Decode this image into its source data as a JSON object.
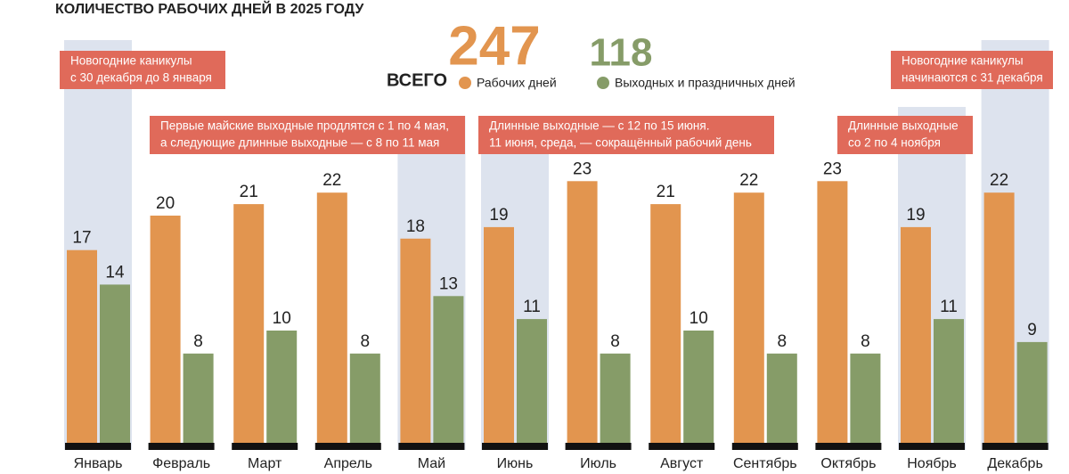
{
  "chart_data": {
    "type": "bar",
    "title": "КОЛИЧЕСТВО РАБОЧИХ ДНЕЙ В 2025 ГОДУ",
    "total_label": "ВСЕГО",
    "categories": [
      "Январь",
      "Февраль",
      "Март",
      "Апрель",
      "Май",
      "Июнь",
      "Июль",
      "Август",
      "Сентябрь",
      "Октябрь",
      "Ноябрь",
      "Декабрь"
    ],
    "series": [
      {
        "name": "Рабочих дней",
        "color": "#e2954f",
        "total": 247,
        "values": [
          17,
          20,
          21,
          22,
          18,
          19,
          23,
          21,
          22,
          23,
          19,
          22
        ]
      },
      {
        "name": "Выходных и праздничных дней",
        "color": "#869c68",
        "total": 118,
        "values": [
          14,
          8,
          10,
          8,
          13,
          11,
          8,
          10,
          8,
          8,
          11,
          9
        ]
      }
    ],
    "highlighted_categories": [
      "Январь",
      "Май",
      "Июнь",
      "Ноябрь",
      "Декабрь"
    ],
    "highlight_color": "#dde3ee",
    "annotation_color": "#e06a5a",
    "annotations": [
      {
        "lines": [
          "Новогодние каникулы",
          "с 30 декабря до 8 января"
        ]
      },
      {
        "lines": [
          "Первые майские выходные продлятся с 1 по 4 мая,",
          "а следующие длинные выходные — с 8 по 11 мая"
        ]
      },
      {
        "lines": [
          "Длинные выходные — с 12 по 15 июня.",
          "11 июня, среда, — сокращённый рабочий день"
        ]
      },
      {
        "lines": [
          "Длинные выходные",
          "со 2 по 4 ноября"
        ]
      },
      {
        "lines": [
          "Новогодние каникулы",
          "начинаются с 31 декабря"
        ]
      }
    ]
  }
}
